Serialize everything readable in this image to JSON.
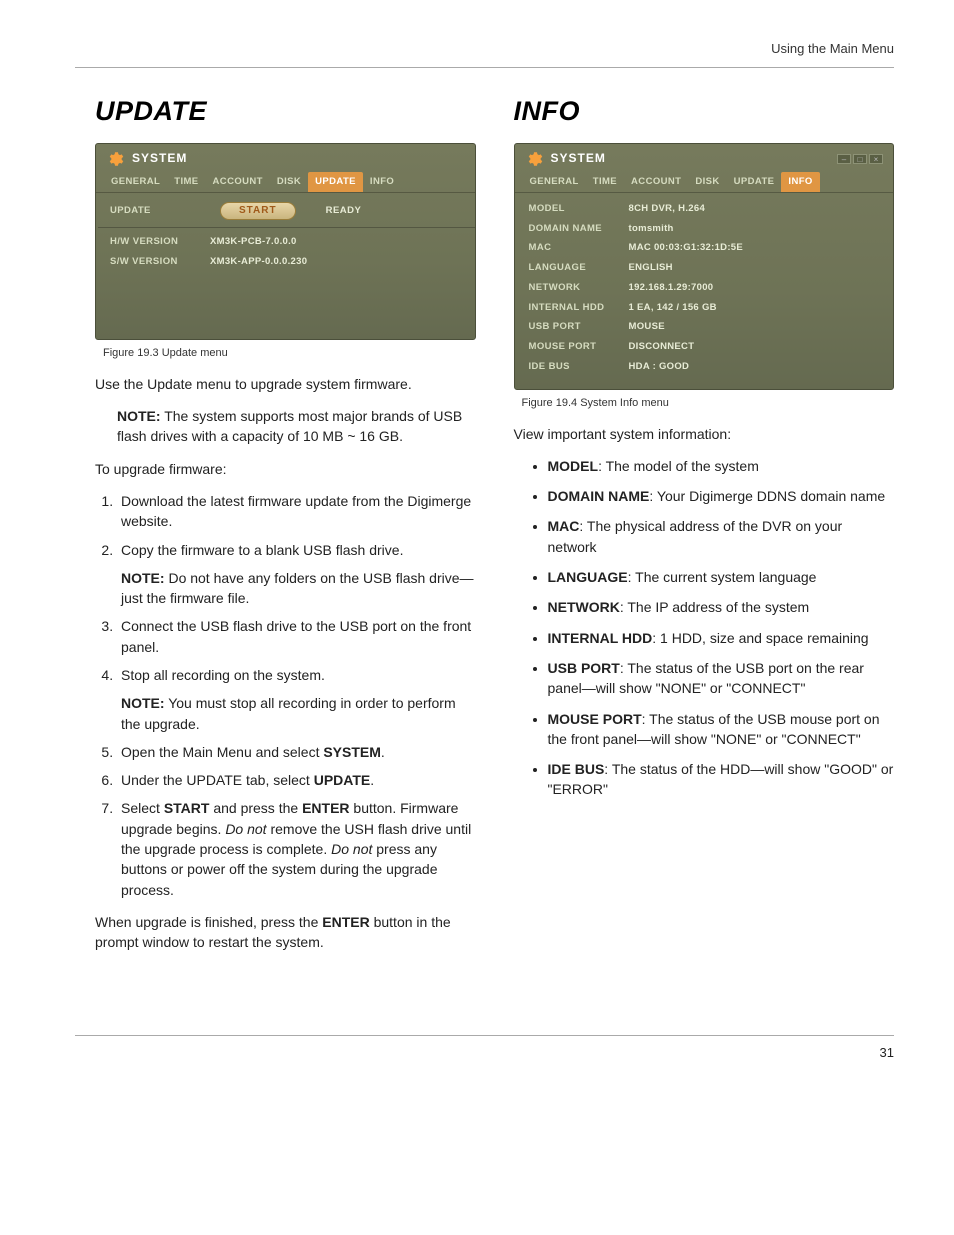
{
  "header": {
    "right": "Using the Main Menu"
  },
  "left": {
    "title": "UPDATE",
    "screenshot": {
      "window_title": "SYSTEM",
      "tabs": [
        "GENERAL",
        "TIME",
        "ACCOUNT",
        "DISK",
        "UPDATE",
        "INFO"
      ],
      "active_tab_index": 4,
      "rows": [
        {
          "label": "UPDATE",
          "button": "START",
          "status": "READY"
        },
        {
          "label": "H/W VERSION",
          "value": "XM3K-PCB-7.0.0.0"
        },
        {
          "label": "S/W VERSION",
          "value": "XM3K-APP-0.0.0.230"
        }
      ]
    },
    "caption": "Figure 19.3 Update menu",
    "intro": "Use the Update menu to upgrade system firmware.",
    "note1_label": "NOTE:",
    "note1_text": " The system supports most major brands of USB flash drives with a capacity of 10 MB ~ 16 GB.",
    "upgrade_heading": "To upgrade firmware:",
    "step1": "Download the latest firmware update from the Digimerge website.",
    "step2": "Copy the firmware to a blank USB flash drive.",
    "step2_note_label": "NOTE:",
    "step2_note_text": " Do not have any folders on the USB flash drive—just the firmware file.",
    "step3": "Connect the USB flash drive to the USB port on the front panel.",
    "step4": "Stop all recording on the system.",
    "step4_note_label": "NOTE:",
    "step4_note_text": " You must stop all recording in order to perform the upgrade.",
    "step5_a": "Open the Main Menu and select ",
    "step5_b": "SYSTEM",
    "step5_c": ".",
    "step6_a": "Under the UPDATE tab, select ",
    "step6_b": "UPDATE",
    "step6_c": ".",
    "step7_a": "Select ",
    "step7_b": "START",
    "step7_c": " and press the ",
    "step7_d": "ENTER",
    "step7_e": " button. Firmware upgrade begins. ",
    "step7_f": "Do not",
    "step7_g": " remove the USH flash drive until the upgrade process is complete. ",
    "step7_h": "Do not",
    "step7_i": " press any buttons or power off the system during the upgrade process.",
    "outro_a": "When upgrade is finished, press the ",
    "outro_b": "ENTER",
    "outro_c": " button in the prompt window to restart the system."
  },
  "right": {
    "title": "INFO",
    "screenshot": {
      "window_title": "SYSTEM",
      "tabs": [
        "GENERAL",
        "TIME",
        "ACCOUNT",
        "DISK",
        "UPDATE",
        "INFO"
      ],
      "active_tab_index": 5,
      "rows": [
        {
          "label": "MODEL",
          "value": "8CH DVR, H.264"
        },
        {
          "label": "DOMAIN NAME",
          "value": "tomsmith"
        },
        {
          "label": "MAC",
          "value": "MAC 00:03:G1:32:1D:5E"
        },
        {
          "label": "LANGUAGE",
          "value": "ENGLISH"
        },
        {
          "label": "NETWORK",
          "value": "192.168.1.29:7000"
        },
        {
          "label": "INTERNAL HDD",
          "value": "1 EA, 142 / 156 GB"
        },
        {
          "label": "USB PORT",
          "value": "MOUSE"
        },
        {
          "label": "MOUSE PORT",
          "value": "DISCONNECT"
        },
        {
          "label": "IDE BUS",
          "value": "HDA :     GOOD"
        }
      ]
    },
    "caption": "Figure 19.4 System Info menu",
    "intro": "View important system information:",
    "bullets": [
      {
        "term": "MODEL",
        "desc": ": The model of the system"
      },
      {
        "term": "DOMAIN NAME",
        "desc": ": Your Digimerge DDNS domain name"
      },
      {
        "term": "MAC",
        "desc": ": The physical address of the DVR on your network"
      },
      {
        "term": "LANGUAGE",
        "desc": ": The current system language"
      },
      {
        "term": "NETWORK",
        "desc": ": The IP address of the system"
      },
      {
        "term": "INTERNAL HDD",
        "desc": ": 1 HDD, size and space remaining"
      },
      {
        "term": "USB PORT",
        "desc": ": The status of the USB port on the rear panel—will show \"NONE\" or \"CONNECT\""
      },
      {
        "term": "MOUSE PORT",
        "desc": ": The status of the USB mouse port on the front panel—will show \"NONE\" or \"CONNECT\""
      },
      {
        "term": "IDE BUS",
        "desc": ": The status of the HDD—will show \"GOOD\" or \"ERROR\""
      }
    ]
  },
  "page_number": "31"
}
